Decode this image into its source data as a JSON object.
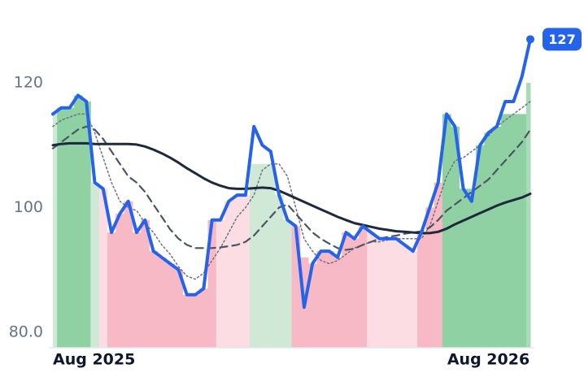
{
  "chart_data": {
    "type": "line",
    "x": [
      0,
      1,
      2,
      3,
      4,
      5,
      6,
      7,
      8,
      9,
      10,
      11,
      12,
      13,
      14,
      15,
      16,
      17,
      18,
      19,
      20,
      21,
      22,
      23,
      24,
      25,
      26,
      27,
      28,
      29,
      30,
      31,
      32,
      33,
      34,
      35,
      36,
      37,
      38,
      39,
      40,
      41,
      42,
      43,
      44,
      45,
      46,
      47,
      48,
      49,
      50,
      51,
      52,
      53,
      54,
      55,
      56,
      57
    ],
    "xlim": [
      0,
      57
    ],
    "xticks": [
      {
        "value": 0,
        "label": "Aug 2025"
      },
      {
        "value": 52,
        "label": "Aug 2026"
      }
    ],
    "ylim": [
      77.5,
      133.3
    ],
    "yticks": [
      {
        "value": 80,
        "label": "80.0"
      },
      100,
      120
    ],
    "series": [
      {
        "color": "#2563eb",
        "style": "solid",
        "width": 4,
        "values": [
          115,
          116,
          116,
          118,
          117,
          104,
          103,
          96,
          99,
          101,
          96,
          98,
          93,
          92,
          91,
          90,
          86,
          86,
          87,
          98,
          98,
          101,
          102,
          102,
          113,
          110,
          109,
          102,
          98,
          97,
          84,
          91,
          93,
          93,
          92,
          96,
          95,
          97,
          96,
          95,
          95,
          95,
          94,
          93,
          96,
          100,
          104,
          115,
          113,
          103,
          101,
          110,
          112,
          113,
          117,
          117,
          121,
          127
        ]
      },
      {
        "color": "#1e293b",
        "style": "solid",
        "width": 3,
        "values": [
          110,
          110.2,
          110.3,
          110.3,
          110.3,
          110.2,
          110.2,
          110.2,
          110.2,
          110.2,
          110.1,
          109.8,
          109.3,
          108.7,
          108,
          107.2,
          106.3,
          105.5,
          104.7,
          104,
          103.5,
          103.1,
          103,
          103,
          103.1,
          103.2,
          103.1,
          102.7,
          102.1,
          101.5,
          100.9,
          100.3,
          99.7,
          99.1,
          98.5,
          98,
          97.5,
          97.2,
          96.9,
          96.6,
          96.4,
          96.2,
          96.1,
          96,
          95.9,
          95.9,
          96.1,
          96.6,
          97.3,
          97.9,
          98.5,
          99.1,
          99.7,
          100.3,
          100.8,
          101.2,
          101.6,
          102.2
        ]
      },
      {
        "color": "#4b5563",
        "style": "dashed",
        "width": 2.2,
        "values": [
          109.5,
          110.5,
          111.5,
          112.5,
          113,
          112.5,
          111,
          109,
          107,
          105,
          104,
          102.5,
          100.5,
          98.5,
          96.5,
          95,
          94,
          93.5,
          93.5,
          93.5,
          93.6,
          93.8,
          94,
          94.5,
          95.5,
          97,
          98.5,
          100,
          100.5,
          99,
          97.5,
          96,
          95,
          94.2,
          93.5,
          93.2,
          93.4,
          94,
          94.5,
          95,
          95.3,
          95.5,
          95.8,
          96,
          96.2,
          96.8,
          98,
          99.5,
          100.5,
          101.5,
          102.5,
          103.5,
          104.5,
          106,
          107.5,
          109,
          110.5,
          112.5
        ]
      },
      {
        "color": "#6b7280",
        "style": "dotted",
        "width": 1.5,
        "values": [
          113,
          114,
          114.5,
          115,
          115,
          112,
          108,
          104,
          101,
          100,
          99.5,
          97.5,
          96,
          94,
          92.5,
          90.5,
          89,
          88.5,
          89.5,
          91.5,
          93.5,
          96,
          98.5,
          100,
          102,
          106,
          107,
          107,
          105,
          100,
          95,
          93,
          91.5,
          91,
          91.5,
          92.5,
          93.5,
          94,
          94.5,
          94.5,
          94.8,
          95,
          95,
          95,
          95,
          97,
          101,
          105,
          107.5,
          108,
          109,
          110,
          111.5,
          113,
          114,
          115,
          116,
          117
        ]
      }
    ],
    "fill_values": [
      115,
      116,
      116,
      118,
      117,
      104,
      103,
      96,
      99,
      101,
      96,
      98,
      93,
      92,
      91,
      90,
      86,
      86,
      87,
      98,
      98,
      101,
      102,
      102,
      107,
      107,
      107,
      102,
      98,
      97,
      92,
      91,
      93,
      93,
      92,
      96,
      95,
      97,
      96,
      95,
      95,
      95,
      94,
      93,
      96,
      100,
      104,
      115,
      113,
      103,
      103,
      110,
      112,
      113,
      115,
      115,
      115,
      120
    ],
    "fill_colors": [
      "#cfe9d6",
      "#8fd1a3",
      "#8fd1a3",
      "#8fd1a3",
      "#8fd1a3",
      "#cfe9d6",
      "#fbdde3",
      "#f7b9c5",
      "#f7b9c5",
      "#f7b9c5",
      "#f7b9c5",
      "#f7b9c5",
      "#f7b9c5",
      "#f7b9c5",
      "#f7b9c5",
      "#f7b9c5",
      "#f7b9c5",
      "#f7b9c5",
      "#f7b9c5",
      "#f7b9c5",
      "#fbdde3",
      "#fbdde3",
      "#fbdde3",
      "#fbdde3",
      "#cfe9d6",
      "#cfe9d6",
      "#cfe9d6",
      "#cfe9d6",
      "#cfe9d6",
      "#f7b9c5",
      "#f7b9c5",
      "#f7b9c5",
      "#f7b9c5",
      "#f7b9c5",
      "#f7b9c5",
      "#f7b9c5",
      "#f7b9c5",
      "#f7b9c5",
      "#fbdde3",
      "#fbdde3",
      "#fbdde3",
      "#fbdde3",
      "#fbdde3",
      "#fbdde3",
      "#f7b9c5",
      "#f7b9c5",
      "#f7b9c5",
      "#8fd1a3",
      "#8fd1a3",
      "#8fd1a3",
      "#8fd1a3",
      "#8fd1a3",
      "#8fd1a3",
      "#8fd1a3",
      "#8fd1a3",
      "#8fd1a3",
      "#8fd1a3",
      "#a8dbb8"
    ]
  }
}
